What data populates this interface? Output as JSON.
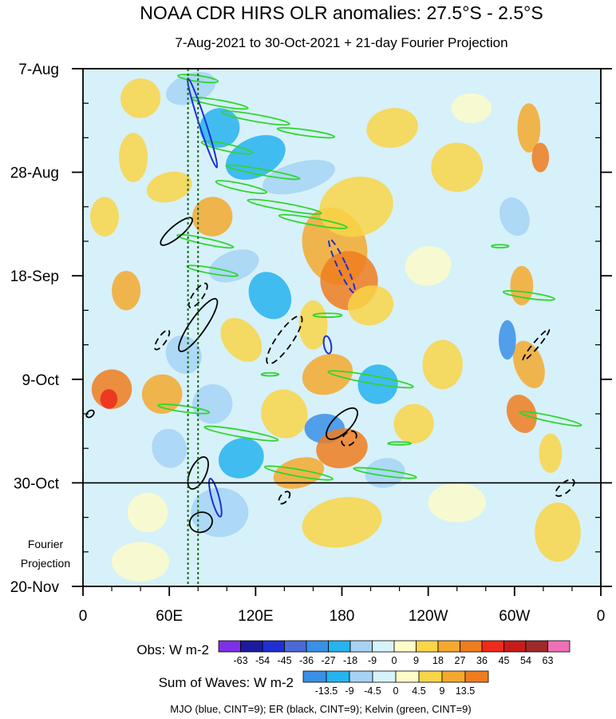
{
  "chart_data": {
    "type": "heatmap",
    "title": "NOAA CDR HIRS OLR anomalies: 27.5°S - 2.5°S",
    "subtitle": "7-Aug-2021 to 30-Oct-2021 + 21-day Fourier Projection",
    "x_ticks": [
      "0",
      "60E",
      "120E",
      "180",
      "120W",
      "60W",
      "0"
    ],
    "x_tick_lons": [
      0,
      60,
      120,
      180,
      240,
      300,
      360
    ],
    "y_ticks": [
      "7-Aug",
      "28-Aug",
      "18-Sep",
      "9-Oct",
      "30-Oct",
      "20-Nov"
    ],
    "y_tick_days": [
      0,
      21,
      42,
      63,
      84,
      105
    ],
    "xlim": [
      0,
      360
    ],
    "ylim_days": [
      0,
      105
    ],
    "observation_end_day": 84,
    "projection_label_line1": "Fourier",
    "projection_label_line2": "Projection",
    "obs_legend_title": "Obs: W m-2",
    "obs_levels": [
      "-63",
      "-54",
      "-45",
      "-36",
      "-27",
      "-18",
      "-9",
      "0",
      "9",
      "18",
      "27",
      "36",
      "45",
      "54",
      "63"
    ],
    "obs_colors": [
      "#7f2fe8",
      "#1b1b9c",
      "#1f2fd1",
      "#4a6ad6",
      "#3a8fe6",
      "#26b3ee",
      "#a6d3f4",
      "#d6f3fb",
      "#fdfbc8",
      "#f9d548",
      "#f4a92e",
      "#ef7d1f",
      "#ee2a1c",
      "#c71b1b",
      "#9e2a2a",
      "#ef6fb8"
    ],
    "waves_legend_title": "Sum of Waves: W m-2",
    "waves_levels": [
      "-13.5",
      "-9",
      "-4.5",
      "0",
      "4.5",
      "9",
      "13.5"
    ],
    "waves_colors": [
      "#3a8fe6",
      "#26b3ee",
      "#a6d3f4",
      "#d6f3fb",
      "#fdfbc8",
      "#f9d548",
      "#f4a92e",
      "#ef7d1f"
    ],
    "footnote": "MJO (blue, CINT=9); ER (black, CINT=9); Kelvin (green, CINT=9)",
    "contour_colors": {
      "mjo": "#1d2fd4",
      "er": "#000000",
      "kelvin": "#2fd62f"
    },
    "reference_lons": [
      73,
      80
    ]
  }
}
